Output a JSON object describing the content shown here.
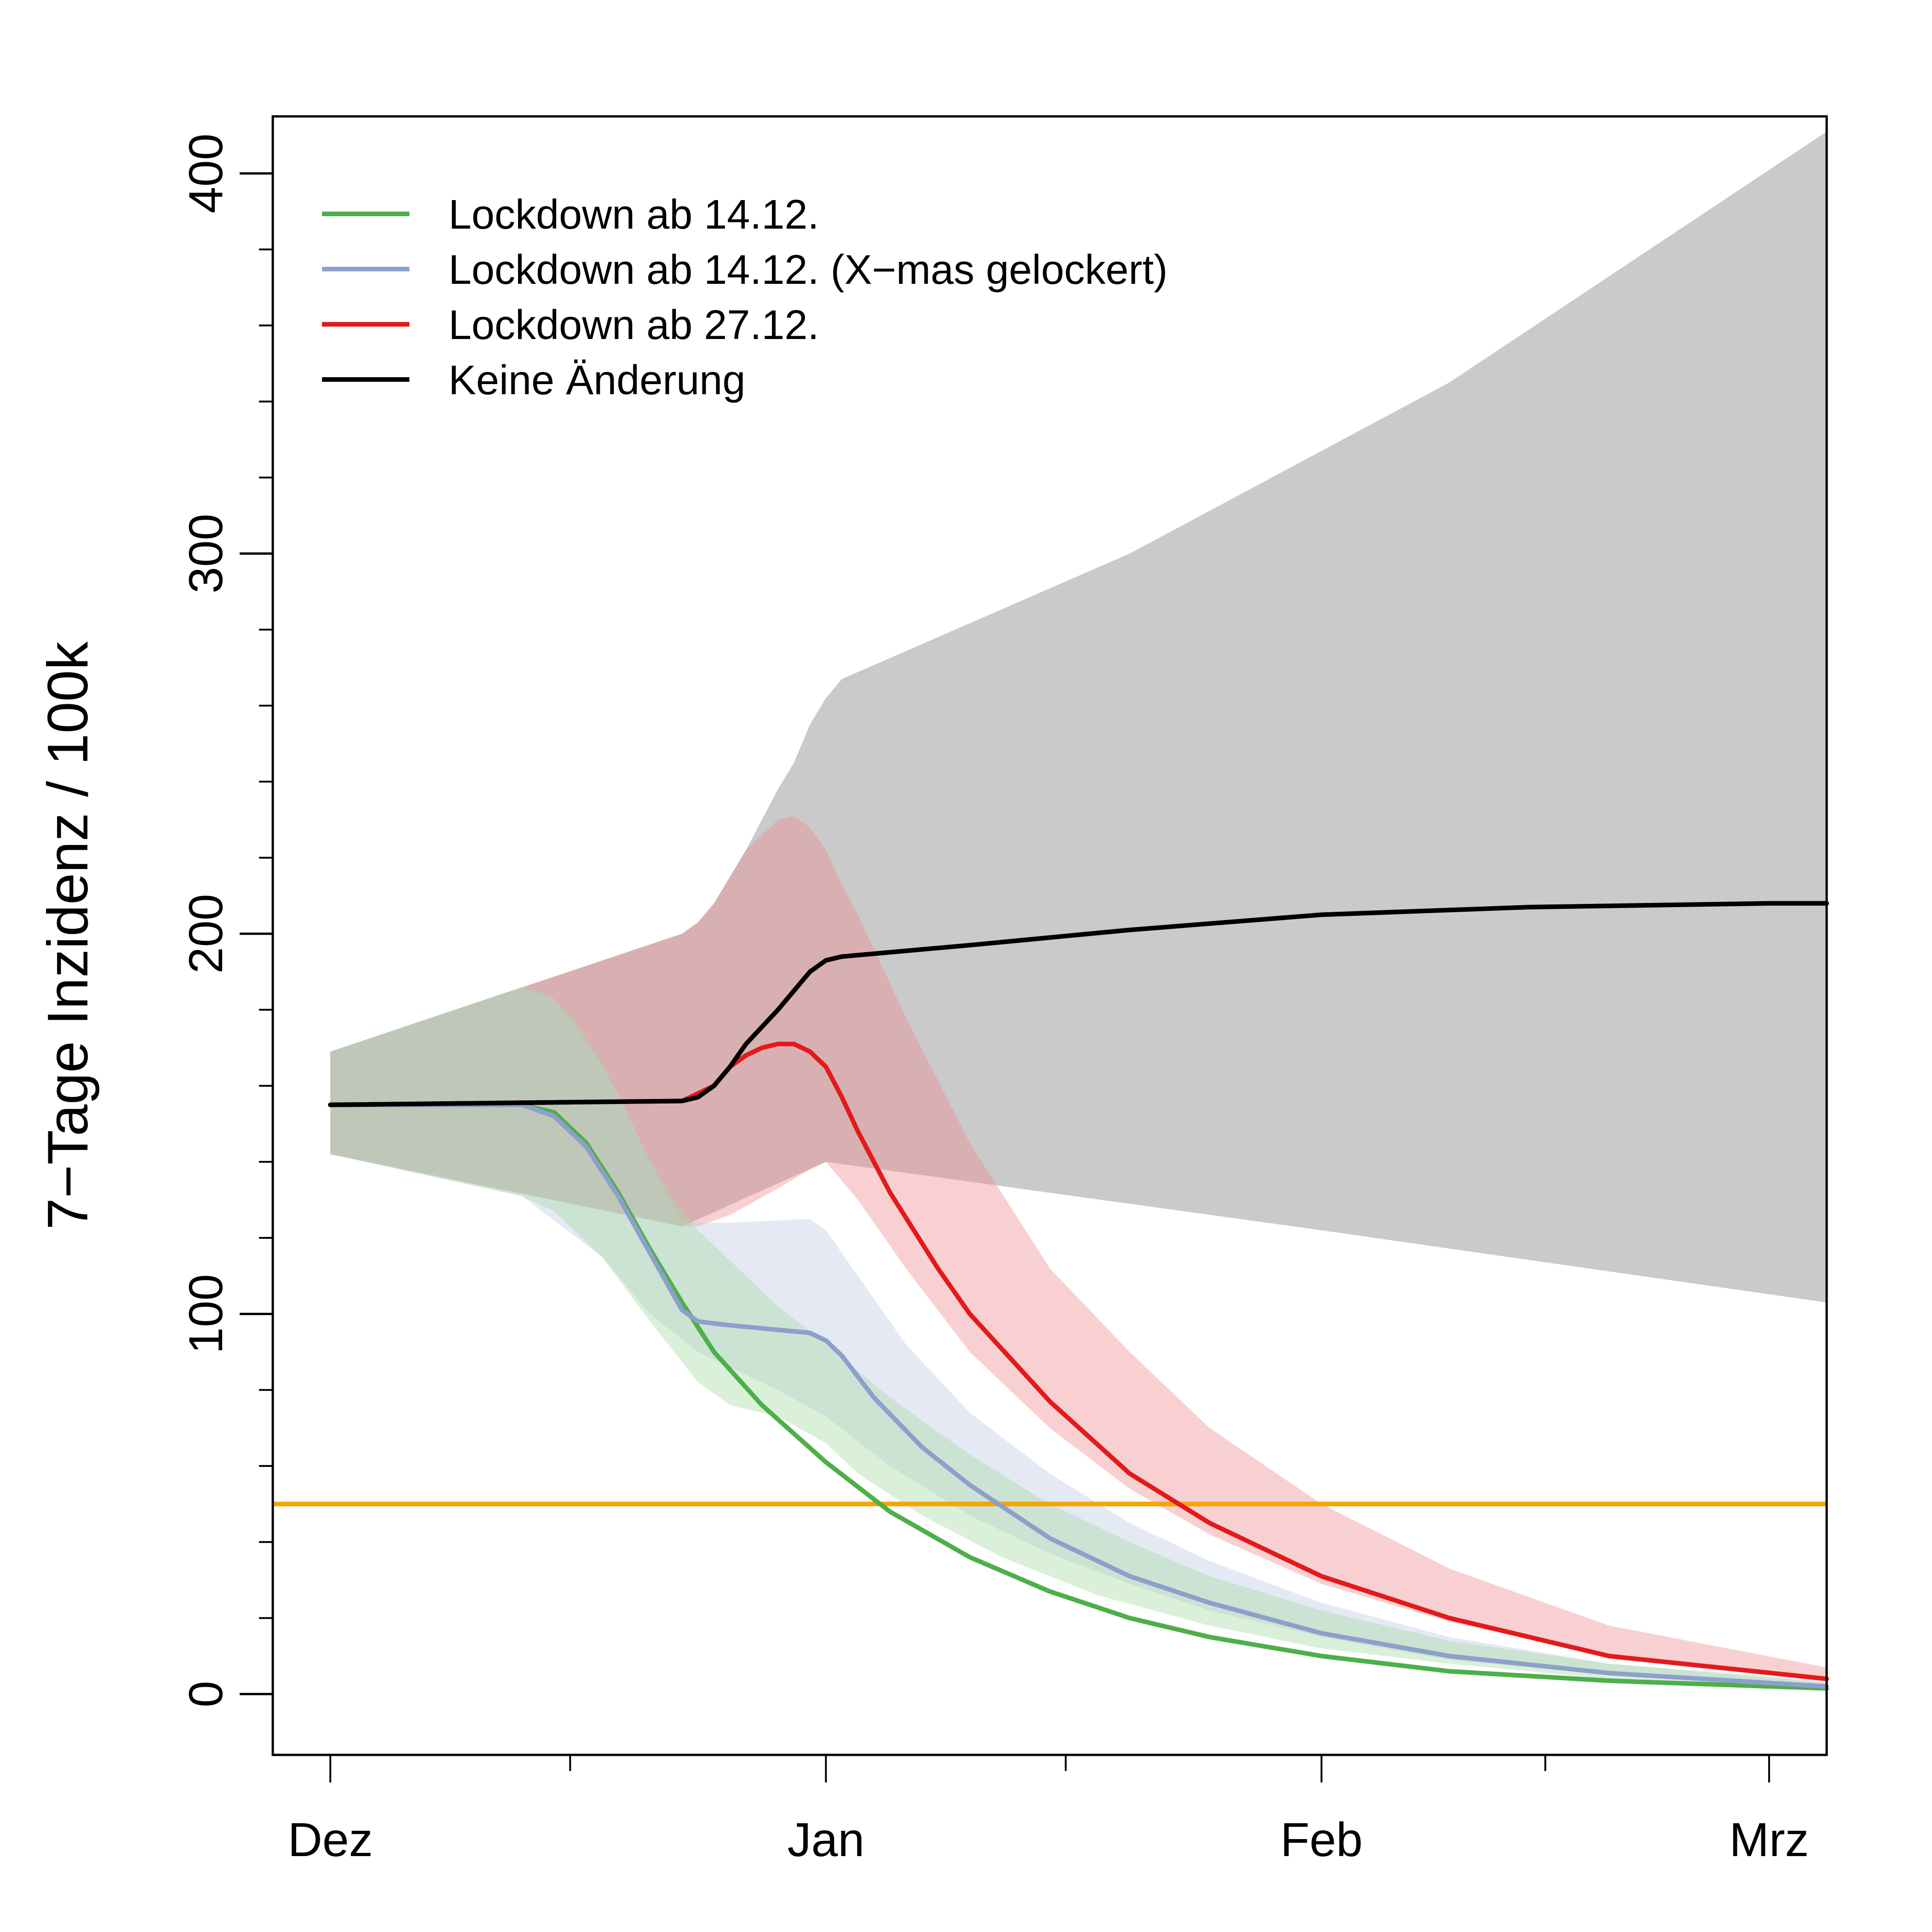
{
  "chart_data": {
    "type": "line",
    "title": "",
    "xlabel": "",
    "ylabel": "7−Tage Inzidenz / 100k",
    "x_unit": "days since 1 Dec",
    "xlim": [
      -3.6,
      93.6
    ],
    "ylim": [
      -16,
      415
    ],
    "x_ticks": [
      {
        "day": 0,
        "label": "Dez"
      },
      {
        "day": 31,
        "label": "Jan"
      },
      {
        "day": 62,
        "label": "Feb"
      },
      {
        "day": 90,
        "label": "Mrz"
      }
    ],
    "x_minor_ticks": [
      15,
      46,
      76
    ],
    "y_ticks": [
      0,
      100,
      200,
      300,
      400
    ],
    "y_minor_ticks": [
      20,
      40,
      60,
      80,
      120,
      140,
      160,
      180,
      220,
      240,
      260,
      280,
      320,
      340,
      360,
      380
    ],
    "grid": false,
    "legend_position": "top-left",
    "threshold": {
      "value": 50,
      "color": "#F5A400"
    },
    "series": [
      {
        "name": "Keine Änderung",
        "color": "#000000",
        "band_color": "#B3B3B3",
        "band_opacity": 0.7,
        "x": [
          0,
          22,
          23,
          24,
          25,
          26,
          28,
          30,
          31,
          32,
          40,
          50,
          62,
          75,
          90,
          93.6
        ],
        "y": [
          155,
          156,
          157,
          160,
          165,
          171,
          180,
          190,
          193,
          194,
          197,
          201,
          205,
          207,
          208,
          208
        ],
        "upper": {
          "x": [
            0,
            22,
            23,
            24,
            26,
            28,
            29,
            30,
            31,
            32,
            50,
            70,
            93.6
          ],
          "y": [
            169,
            200,
            203,
            208,
            222,
            238,
            245,
            255,
            262,
            267,
            300,
            345,
            411
          ]
        },
        "lower": {
          "x": [
            0,
            22,
            31,
            62,
            93.6
          ],
          "y": [
            142,
            123,
            140,
            122,
            103
          ]
        }
      },
      {
        "name": "Lockdown ab 27.12.",
        "color": "#E31A1C",
        "band_color": "#F08A8C",
        "band_opacity": 0.4,
        "x": [
          0,
          22,
          24,
          25,
          26,
          27,
          28,
          29,
          30,
          31,
          32,
          33,
          35,
          38,
          40,
          45,
          50,
          55,
          62,
          70,
          80,
          93.6
        ],
        "y": [
          155,
          156,
          160,
          165,
          168,
          170,
          171,
          171,
          169,
          165,
          157,
          148,
          132,
          112,
          100,
          77,
          58,
          45,
          31,
          20,
          10,
          4
        ],
        "upper": {
          "x": [
            0,
            22,
            23,
            24,
            25,
            26,
            27,
            28,
            29,
            30,
            31,
            32,
            33,
            36,
            40,
            45,
            50,
            55,
            62,
            70,
            80,
            93.6
          ],
          "y": [
            169,
            200,
            203,
            208,
            215,
            222,
            226,
            230,
            231,
            228,
            222,
            213,
            205,
            178,
            145,
            112,
            90,
            70,
            50,
            33,
            18,
            7
          ]
        },
        "lower": {
          "x": [
            0,
            22,
            23,
            25,
            28,
            30,
            31,
            33,
            36,
            40,
            45,
            50,
            55,
            62,
            70,
            80,
            93.6
          ],
          "y": [
            142,
            123,
            123,
            126,
            133,
            138,
            140,
            130,
            112,
            90,
            70,
            54,
            42,
            29,
            19,
            10,
            4
          ]
        }
      },
      {
        "name": "Lockdown ab 14.12. (X−mas gelockert)",
        "color": "#8DA0CB",
        "band_color": "#C6CEE6",
        "band_opacity": 0.45,
        "x": [
          0,
          12,
          14,
          16,
          18,
          20,
          22,
          23,
          25,
          30,
          31,
          32,
          34,
          37,
          40,
          45,
          50,
          55,
          62,
          70,
          80,
          93.6
        ],
        "y": [
          155,
          155,
          152,
          144,
          131,
          116,
          101,
          98,
          97,
          95,
          93,
          89,
          78,
          65,
          55,
          41,
          31,
          24,
          16,
          10,
          5.5,
          2
        ],
        "upper": {
          "x": [
            0,
            12,
            14,
            16,
            18,
            20,
            22,
            25,
            30,
            31,
            33,
            36,
            40,
            45,
            50,
            55,
            62,
            70,
            80,
            93.6
          ],
          "y": [
            169,
            186,
            183,
            172,
            158,
            140,
            124,
            124,
            125,
            122,
            110,
            92,
            74,
            58,
            45,
            35,
            24,
            15,
            8,
            3.5
          ]
        },
        "lower": {
          "x": [
            0,
            12,
            17,
            20,
            23,
            28,
            31,
            35,
            40,
            45,
            50,
            55,
            62,
            70,
            80,
            93.6
          ],
          "y": [
            142,
            131,
            115,
            100,
            90,
            80,
            73,
            60,
            47,
            37,
            29,
            22,
            15,
            9,
            5,
            2
          ]
        }
      },
      {
        "name": "Lockdown ab 14.12.",
        "color": "#4DAF4A",
        "band_color": "#A6D9A0",
        "band_opacity": 0.4,
        "x": [
          0,
          12,
          14,
          16,
          18,
          20,
          22,
          24,
          27,
          31,
          35,
          40,
          45,
          50,
          55,
          62,
          70,
          80,
          93.6
        ],
        "y": [
          155,
          155,
          153,
          145,
          132,
          117,
          103,
          90,
          76,
          61,
          48,
          36,
          27,
          20,
          15,
          10,
          6,
          3.5,
          1.5
        ],
        "upper": {
          "x": [
            0,
            12,
            13,
            15,
            17,
            19,
            21,
            23,
            25,
            28,
            31,
            35,
            40,
            45,
            50,
            55,
            62,
            70,
            80,
            93.6
          ],
          "y": [
            169,
            186,
            185,
            179,
            166,
            148,
            133,
            122,
            114,
            102,
            92,
            78,
            63,
            50,
            40,
            31,
            22,
            14,
            8,
            3
          ]
        },
        "lower": {
          "x": [
            0,
            12,
            14,
            17,
            20,
            23,
            25,
            28,
            31,
            33,
            37,
            42,
            48,
            55,
            62,
            70,
            80,
            93.6
          ],
          "y": [
            142,
            131,
            127,
            115,
            98,
            82,
            76,
            73,
            66,
            58,
            47,
            36,
            26,
            18,
            12,
            8,
            4,
            1
          ]
        }
      }
    ],
    "legend": [
      {
        "label": "Lockdown ab 14.12.",
        "color": "#4DAF4A"
      },
      {
        "label": "Lockdown ab 14.12. (X−mas gelockert)",
        "color": "#8DA0CB"
      },
      {
        "label": "Lockdown ab 27.12.",
        "color": "#E31A1C"
      },
      {
        "label": "Keine Änderung",
        "color": "#000000"
      }
    ]
  }
}
